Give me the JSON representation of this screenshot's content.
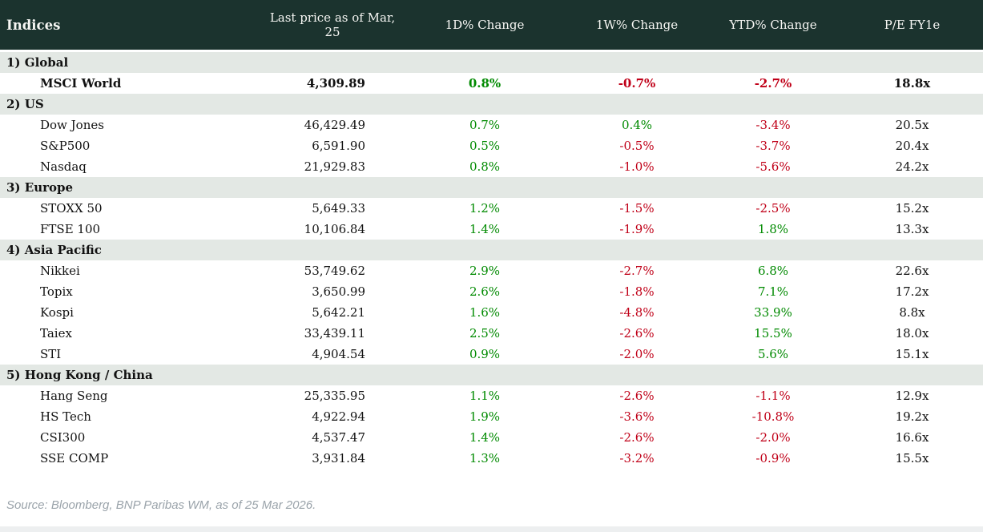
{
  "colors": {
    "header_bg": "#1b332e",
    "section_bg": "#e3e8e4",
    "positive": "#008a00",
    "negative": "#c00018"
  },
  "chart_data": {
    "type": "table",
    "title": "Indices",
    "columns": [
      "Indices",
      "Last price as of Mar, 25",
      "1D% Change",
      "1W% Change",
      "YTD% Change",
      "P/E FY1e"
    ],
    "sections": [
      {
        "label": "1) Global",
        "rows": [
          {
            "name": "MSCI World",
            "bold": true,
            "price": "4,309.89",
            "d1": "0.8%",
            "w1": "-0.7%",
            "ytd": "-2.7%",
            "pe": "18.8x"
          }
        ]
      },
      {
        "label": "2) US",
        "rows": [
          {
            "name": "Dow Jones",
            "bold": false,
            "price": "46,429.49",
            "d1": "0.7%",
            "w1": "0.4%",
            "ytd": "-3.4%",
            "pe": "20.5x"
          },
          {
            "name": "S&P500",
            "bold": false,
            "price": "6,591.90",
            "d1": "0.5%",
            "w1": "-0.5%",
            "ytd": "-3.7%",
            "pe": "20.4x"
          },
          {
            "name": "Nasdaq",
            "bold": false,
            "price": "21,929.83",
            "d1": "0.8%",
            "w1": "-1.0%",
            "ytd": "-5.6%",
            "pe": "24.2x"
          }
        ]
      },
      {
        "label": "3) Europe",
        "rows": [
          {
            "name": "STOXX 50",
            "bold": false,
            "price": "5,649.33",
            "d1": "1.2%",
            "w1": "-1.5%",
            "ytd": "-2.5%",
            "pe": "15.2x"
          },
          {
            "name": "FTSE 100",
            "bold": false,
            "price": "10,106.84",
            "d1": "1.4%",
            "w1": "-1.9%",
            "ytd": "1.8%",
            "pe": "13.3x"
          }
        ]
      },
      {
        "label": "4) Asia Pacific",
        "rows": [
          {
            "name": "Nikkei",
            "bold": false,
            "price": "53,749.62",
            "d1": "2.9%",
            "w1": "-2.7%",
            "ytd": "6.8%",
            "pe": "22.6x"
          },
          {
            "name": "Topix",
            "bold": false,
            "price": "3,650.99",
            "d1": "2.6%",
            "w1": "-1.8%",
            "ytd": "7.1%",
            "pe": "17.2x"
          },
          {
            "name": "Kospi",
            "bold": false,
            "price": "5,642.21",
            "d1": "1.6%",
            "w1": "-4.8%",
            "ytd": "33.9%",
            "pe": "8.8x"
          },
          {
            "name": "Taiex",
            "bold": false,
            "price": "33,439.11",
            "d1": "2.5%",
            "w1": "-2.6%",
            "ytd": "15.5%",
            "pe": "18.0x"
          },
          {
            "name": "STI",
            "bold": false,
            "price": "4,904.54",
            "d1": "0.9%",
            "w1": "-2.0%",
            "ytd": "5.6%",
            "pe": "15.1x"
          }
        ]
      },
      {
        "label": "5) Hong Kong / China",
        "rows": [
          {
            "name": "Hang Seng",
            "bold": false,
            "price": "25,335.95",
            "d1": "1.1%",
            "w1": "-2.6%",
            "ytd": "-1.1%",
            "pe": "12.9x"
          },
          {
            "name": "HS Tech",
            "bold": false,
            "price": "4,922.94",
            "d1": "1.9%",
            "w1": "-3.6%",
            "ytd": "-10.8%",
            "pe": "19.2x"
          },
          {
            "name": "CSI300",
            "bold": false,
            "price": "4,537.47",
            "d1": "1.4%",
            "w1": "-2.6%",
            "ytd": "-2.0%",
            "pe": "16.6x"
          },
          {
            "name": "SSE COMP",
            "bold": false,
            "price": "3,931.84",
            "d1": "1.3%",
            "w1": "-3.2%",
            "ytd": "-0.9%",
            "pe": "15.5x"
          }
        ]
      }
    ]
  },
  "footer": {
    "source": "Source: Bloomberg, BNP Paribas WM, as of 25 Mar 2026."
  }
}
